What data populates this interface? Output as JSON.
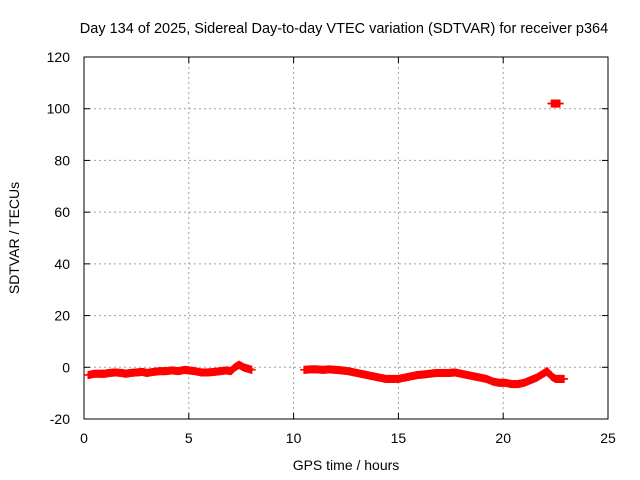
{
  "chart_data": {
    "type": "scatter",
    "title": "Day 134 of 2025, Sidereal Day-to-day VTEC variation (SDTVAR) for receiver p364",
    "xlabel": "GPS time / hours",
    "ylabel": "SDTVAR / TECUs",
    "xlim": [
      0,
      25
    ],
    "ylim": [
      -20,
      120
    ],
    "xticks": [
      0,
      5,
      10,
      15,
      20,
      25
    ],
    "yticks": [
      -20,
      0,
      20,
      40,
      60,
      80,
      100,
      120
    ],
    "grid": true,
    "legend": "none",
    "marker": "plus",
    "series": [
      {
        "name": "SDTVAR",
        "color": "#ff0000",
        "x": [
          0.2,
          0.5,
          0.8,
          1.0,
          1.2,
          1.5,
          1.8,
          2.0,
          2.2,
          2.5,
          2.8,
          3.0,
          3.3,
          3.6,
          3.9,
          4.2,
          4.5,
          4.8,
          5.0,
          5.3,
          5.6,
          5.9,
          6.2,
          6.5,
          6.8,
          7.0,
          7.2,
          7.4,
          7.6,
          7.8,
          8.0,
          10.5,
          10.8,
          11.1,
          11.4,
          11.7,
          12.0,
          12.3,
          12.6,
          12.9,
          13.2,
          13.5,
          13.8,
          14.1,
          14.4,
          14.7,
          15.0,
          15.3,
          15.6,
          15.9,
          16.2,
          16.5,
          16.8,
          17.1,
          17.4,
          17.7,
          18.0,
          18.3,
          18.6,
          18.9,
          19.2,
          19.5,
          19.8,
          20.1,
          20.4,
          20.7,
          21.0,
          21.3,
          21.6,
          21.9,
          22.1,
          22.3,
          22.5,
          22.7,
          22.9,
          22.3,
          22.5,
          22.7
        ],
        "y": [
          -3,
          -2.5,
          -2.5,
          -2.5,
          -2.2,
          -2,
          -2.2,
          -2.5,
          -2.2,
          -2,
          -1.8,
          -2.2,
          -1.8,
          -1.5,
          -1.5,
          -1.2,
          -1.5,
          -1,
          -1.2,
          -1.5,
          -2,
          -2,
          -1.8,
          -1.5,
          -1.2,
          -1.5,
          0,
          1,
          0,
          -0.5,
          -1,
          -1,
          -0.8,
          -0.8,
          -1,
          -0.8,
          -1,
          -1.2,
          -1.5,
          -2,
          -2.5,
          -3,
          -3.5,
          -4,
          -4.5,
          -4.5,
          -4.5,
          -4,
          -3.5,
          -3,
          -2.8,
          -2.5,
          -2.2,
          -2.2,
          -2.2,
          -2,
          -2.5,
          -3,
          -3.5,
          -4,
          -4.5,
          -5.5,
          -6,
          -6,
          -6.5,
          -6.5,
          -6,
          -5,
          -4,
          -2.5,
          -1.5,
          -3.5,
          -4.5,
          -4.5,
          -4.5,
          102,
          102,
          102
        ]
      }
    ]
  }
}
